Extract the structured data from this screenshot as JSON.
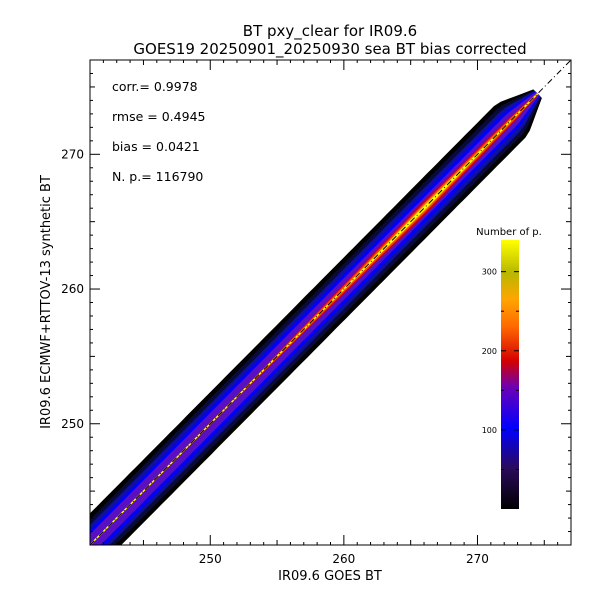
{
  "chart_data": {
    "type": "scatter",
    "title": "BT pxy_clear for IR09.6",
    "subtitle": "GOES19 20250901_20250930 sea BT bias corrected",
    "xlabel": "IR09.6 GOES BT",
    "ylabel": "IR09.6 ECMWF+RTTOV-13 synthetic BT",
    "xlim": [
      241,
      277
    ],
    "ylim": [
      241,
      277
    ],
    "x_ticks": [
      250,
      260,
      270
    ],
    "y_ticks": [
      250,
      260,
      270
    ],
    "grid": false,
    "reference_line": "1:1 dashed diagonal",
    "stats": [
      {
        "label": "corr.=",
        "value": "0.9978"
      },
      {
        "label": "rmse =",
        "value": "0.4945"
      },
      {
        "label": "bias =",
        "value": "0.0421"
      },
      {
        "label": "N. p.=",
        "value": "116790"
      }
    ],
    "density": {
      "x_range": [
        241,
        274.5
      ],
      "spread_core": 0.35,
      "spread_envelope": 1.7,
      "peak_x": 266
    },
    "colorbar": {
      "title": "Number of p.",
      "ticks": [
        100,
        200,
        300
      ],
      "range": [
        0,
        340
      ],
      "colors": [
        "#000000",
        "#2a0a5a",
        "#0000ff",
        "#6a00b8",
        "#d40000",
        "#ff6a00",
        "#ffa500",
        "#b8b800",
        "#ffff00"
      ]
    }
  }
}
